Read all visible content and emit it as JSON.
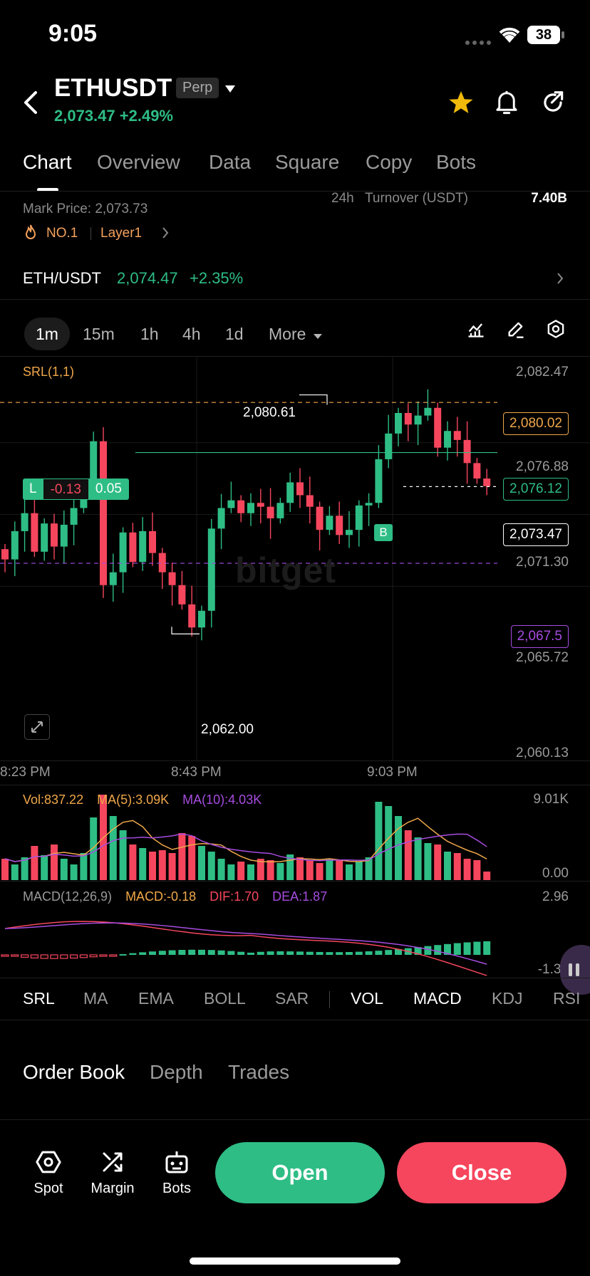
{
  "status_bar": {
    "time": "9:05",
    "battery": "38"
  },
  "header": {
    "symbol": "ETHUSDT",
    "badge": "Perp",
    "price": "2,073.47",
    "change": "+2.49%"
  },
  "tabs": [
    "Chart",
    "Overview",
    "Data",
    "Square",
    "Copy",
    "Bots"
  ],
  "info": {
    "mark_price": "Mark Price: 2,073.73",
    "turnover_label_prefix": "24h",
    "turnover_label": "Turnover (USDT)",
    "turnover_value": "7.40B",
    "rank": "NO.1",
    "category": "Layer1"
  },
  "spot_pair": {
    "pair": "ETH/USDT",
    "price": "2,074.47",
    "change": "+2.35%"
  },
  "timeframes": [
    "1m",
    "15m",
    "1h",
    "4h",
    "1d",
    "More"
  ],
  "main_chart": {
    "indicator": "SRL(1,1)",
    "y_axis": [
      "2,082.47",
      "2,076.88",
      "2,071.30",
      "2,065.72",
      "2,060.13"
    ],
    "high_label": "2,080.61",
    "low_label": "2,062.00",
    "orange_line": "2,080.02",
    "position_line": "2,076.12",
    "last_price": "2,073.47",
    "purple_line": "2,067.5",
    "position_tag": {
      "side": "L",
      "pnl": "-0.13",
      "size": "0.05"
    },
    "buy_marker": "B",
    "watermark": "bitget",
    "x_axis": [
      "8:23 PM",
      "8:43 PM",
      "9:03 PM"
    ],
    "colors": {
      "up": "#2ebd85",
      "down": "#f6465d",
      "orange": "#f0a84a",
      "purple": "#a64ce0"
    }
  },
  "volume": {
    "vol": "Vol:837.22",
    "ma5": "MA(5):3.09K",
    "ma10": "MA(10):4.03K",
    "top": "9.01K",
    "bottom": "0.00"
  },
  "macd": {
    "title": "MACD(12,26,9)",
    "macd": "MACD:-0.18",
    "dif": "DIF:1.70",
    "dea": "DEA:1.87",
    "top": "2.96",
    "bottom": "-1.32"
  },
  "indicators": [
    "SRL",
    "MA",
    "EMA",
    "BOLL",
    "SAR",
    "VOL",
    "MACD",
    "KDJ",
    "RSI"
  ],
  "book_tabs": [
    "Order Book",
    "Depth",
    "Trades"
  ],
  "bottom_nav": {
    "spot": "Spot",
    "margin": "Margin",
    "bots": "Bots",
    "open": "Open",
    "close": "Close"
  }
}
